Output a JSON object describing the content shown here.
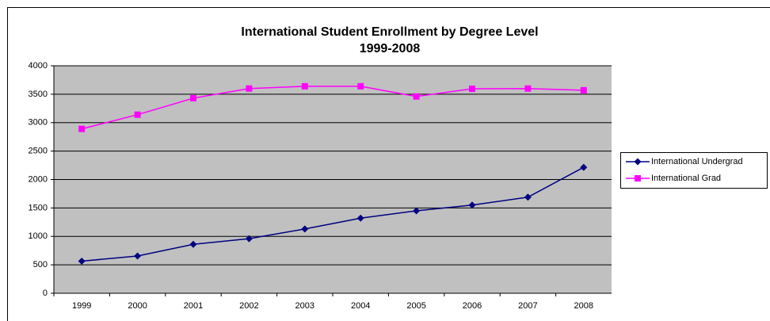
{
  "chart_data": {
    "type": "line",
    "title": "International Student Enrollment by Degree Level",
    "subtitle": "1999-2008",
    "categories": [
      "1999",
      "2000",
      "2001",
      "2002",
      "2003",
      "2004",
      "2005",
      "2006",
      "2007",
      "2008"
    ],
    "series": [
      {
        "name": "International Undergrad",
        "color": "#000080",
        "marker": "diamond",
        "values": [
          565,
          655,
          860,
          960,
          1130,
          1320,
          1450,
          1550,
          1690,
          2215
        ]
      },
      {
        "name": "International Grad",
        "color": "#ff00ff",
        "marker": "square",
        "values": [
          2890,
          3140,
          3430,
          3600,
          3640,
          3640,
          3460,
          3595,
          3600,
          3570
        ]
      }
    ],
    "ylim": [
      0,
      4000
    ],
    "yticks": [
      0,
      500,
      1000,
      1500,
      2000,
      2500,
      3000,
      3500,
      4000
    ],
    "grid": true,
    "legend": "right"
  }
}
